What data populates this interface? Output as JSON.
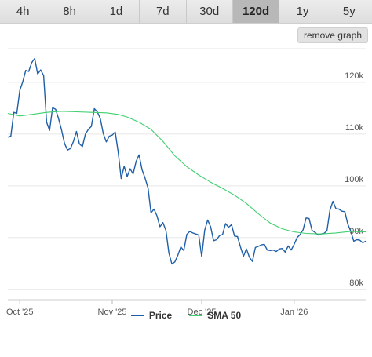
{
  "tabs": [
    {
      "label": "4h"
    },
    {
      "label": "8h"
    },
    {
      "label": "1d"
    },
    {
      "label": "7d"
    },
    {
      "label": "30d"
    },
    {
      "label": "120d"
    },
    {
      "label": "1y"
    },
    {
      "label": "5y"
    }
  ],
  "active_tab": "120d",
  "remove_button_label": "remove graph",
  "colors": {
    "price": "#1f5fa8",
    "sma": "#3fcf70",
    "grid": "#e6e6e6",
    "active_tab": "#b8b8b8"
  },
  "chart_data": {
    "type": "line",
    "title": "",
    "xlabel": "",
    "ylabel": "",
    "ylim": [
      78000,
      126500
    ],
    "y_ticks": [
      {
        "value": 80000,
        "label": "80k"
      },
      {
        "value": 90000,
        "label": "90k"
      },
      {
        "value": 100000,
        "label": "100k"
      },
      {
        "value": 110000,
        "label": "110k"
      },
      {
        "value": 120000,
        "label": "120k"
      }
    ],
    "x_range": [
      "2025-09-27",
      "2026-01-25"
    ],
    "x_ticks": [
      {
        "date": "2025-10-01",
        "label": "Oct '25"
      },
      {
        "date": "2025-11-01",
        "label": "Nov '25"
      },
      {
        "date": "2025-12-01",
        "label": "Dec '25"
      },
      {
        "date": "2026-01-01",
        "label": "Jan '26"
      }
    ],
    "grid": true,
    "legend_position": "bottom",
    "series": [
      {
        "name": "Price",
        "color": "#1f5fa8",
        "points": [
          [
            "2025-09-27",
            109400
          ],
          [
            "2025-09-28",
            109600
          ],
          [
            "2025-09-29",
            114200
          ],
          [
            "2025-09-30",
            114000
          ],
          [
            "2025-10-01",
            118400
          ],
          [
            "2025-10-02",
            120100
          ],
          [
            "2025-10-03",
            122300
          ],
          [
            "2025-10-04",
            122100
          ],
          [
            "2025-10-05",
            123800
          ],
          [
            "2025-10-06",
            124600
          ],
          [
            "2025-10-07",
            121600
          ],
          [
            "2025-10-08",
            122400
          ],
          [
            "2025-10-09",
            121300
          ],
          [
            "2025-10-10",
            112300
          ],
          [
            "2025-10-11",
            110700
          ],
          [
            "2025-10-12",
            115100
          ],
          [
            "2025-10-13",
            114800
          ],
          [
            "2025-10-14",
            113000
          ],
          [
            "2025-10-15",
            110800
          ],
          [
            "2025-10-16",
            108200
          ],
          [
            "2025-10-17",
            106900
          ],
          [
            "2025-10-18",
            107200
          ],
          [
            "2025-10-19",
            108600
          ],
          [
            "2025-10-20",
            110500
          ],
          [
            "2025-10-21",
            108100
          ],
          [
            "2025-10-22",
            107600
          ],
          [
            "2025-10-23",
            110000
          ],
          [
            "2025-10-24",
            110900
          ],
          [
            "2025-10-25",
            111500
          ],
          [
            "2025-10-26",
            114900
          ],
          [
            "2025-10-27",
            114300
          ],
          [
            "2025-10-28",
            113000
          ],
          [
            "2025-10-29",
            110100
          ],
          [
            "2025-10-30",
            108500
          ],
          [
            "2025-10-31",
            109600
          ],
          [
            "2025-11-01",
            109800
          ],
          [
            "2025-11-02",
            110400
          ],
          [
            "2025-11-03",
            106500
          ],
          [
            "2025-11-04",
            101400
          ],
          [
            "2025-11-05",
            103800
          ],
          [
            "2025-11-06",
            101800
          ],
          [
            "2025-11-07",
            103300
          ],
          [
            "2025-11-08",
            102300
          ],
          [
            "2025-11-09",
            104700
          ],
          [
            "2025-11-10",
            106000
          ],
          [
            "2025-11-11",
            103100
          ],
          [
            "2025-11-12",
            101500
          ],
          [
            "2025-11-13",
            99600
          ],
          [
            "2025-11-14",
            94800
          ],
          [
            "2025-11-15",
            95500
          ],
          [
            "2025-11-16",
            94200
          ],
          [
            "2025-11-17",
            92100
          ],
          [
            "2025-11-18",
            92900
          ],
          [
            "2025-11-19",
            91400
          ],
          [
            "2025-11-20",
            87000
          ],
          [
            "2025-11-21",
            84900
          ],
          [
            "2025-11-22",
            85300
          ],
          [
            "2025-11-23",
            86600
          ],
          [
            "2025-11-24",
            88200
          ],
          [
            "2025-11-25",
            87500
          ],
          [
            "2025-11-26",
            90600
          ],
          [
            "2025-11-27",
            91200
          ],
          [
            "2025-11-28",
            90900
          ],
          [
            "2025-11-29",
            90700
          ],
          [
            "2025-11-30",
            90500
          ],
          [
            "2025-12-01",
            86300
          ],
          [
            "2025-12-02",
            91400
          ],
          [
            "2025-12-03",
            93400
          ],
          [
            "2025-12-04",
            92100
          ],
          [
            "2025-12-05",
            89400
          ],
          [
            "2025-12-06",
            89600
          ],
          [
            "2025-12-07",
            90400
          ],
          [
            "2025-12-08",
            90600
          ],
          [
            "2025-12-09",
            92700
          ],
          [
            "2025-12-10",
            92000
          ],
          [
            "2025-12-11",
            92500
          ],
          [
            "2025-12-12",
            90300
          ],
          [
            "2025-12-13",
            90200
          ],
          [
            "2025-12-14",
            88200
          ],
          [
            "2025-12-15",
            86400
          ],
          [
            "2025-12-16",
            87800
          ],
          [
            "2025-12-17",
            86200
          ],
          [
            "2025-12-18",
            85400
          ],
          [
            "2025-12-19",
            88100
          ],
          [
            "2025-12-20",
            88300
          ],
          [
            "2025-12-21",
            88600
          ],
          [
            "2025-12-22",
            88700
          ],
          [
            "2025-12-23",
            87600
          ],
          [
            "2025-12-24",
            87500
          ],
          [
            "2025-12-25",
            87600
          ],
          [
            "2025-12-26",
            87300
          ],
          [
            "2025-12-27",
            87800
          ],
          [
            "2025-12-28",
            87900
          ],
          [
            "2025-12-29",
            87200
          ],
          [
            "2025-12-30",
            88400
          ],
          [
            "2025-12-31",
            87600
          ],
          [
            "2026-01-01",
            88700
          ],
          [
            "2026-01-02",
            90000
          ],
          [
            "2026-01-03",
            90600
          ],
          [
            "2026-01-04",
            91500
          ],
          [
            "2026-01-05",
            93800
          ],
          [
            "2026-01-06",
            93700
          ],
          [
            "2026-01-07",
            91400
          ],
          [
            "2026-01-08",
            91000
          ],
          [
            "2026-01-09",
            90500
          ],
          [
            "2026-01-10",
            90700
          ],
          [
            "2026-01-11",
            90800
          ],
          [
            "2026-01-12",
            91300
          ],
          [
            "2026-01-13",
            95300
          ],
          [
            "2026-01-14",
            97000
          ],
          [
            "2026-01-15",
            95600
          ],
          [
            "2026-01-16",
            95500
          ],
          [
            "2026-01-17",
            95100
          ],
          [
            "2026-01-18",
            95000
          ],
          [
            "2026-01-19",
            92600
          ],
          [
            "2026-01-20",
            91200
          ],
          [
            "2026-01-21",
            89300
          ],
          [
            "2026-01-22",
            89600
          ],
          [
            "2026-01-23",
            89500
          ],
          [
            "2026-01-24",
            89000
          ],
          [
            "2026-01-25",
            89300
          ]
        ]
      },
      {
        "name": "SMA 50",
        "color": "#3fcf70",
        "points": [
          [
            "2025-09-27",
            114000
          ],
          [
            "2025-10-01",
            113500
          ],
          [
            "2025-10-05",
            113800
          ],
          [
            "2025-10-10",
            114200
          ],
          [
            "2025-10-15",
            114400
          ],
          [
            "2025-10-20",
            114300
          ],
          [
            "2025-10-25",
            114200
          ],
          [
            "2025-10-30",
            114100
          ],
          [
            "2025-11-03",
            113800
          ],
          [
            "2025-11-06",
            113300
          ],
          [
            "2025-11-10",
            112300
          ],
          [
            "2025-11-14",
            110900
          ],
          [
            "2025-11-18",
            108600
          ],
          [
            "2025-11-22",
            105800
          ],
          [
            "2025-11-26",
            103700
          ],
          [
            "2025-11-30",
            102100
          ],
          [
            "2025-12-04",
            100700
          ],
          [
            "2025-12-08",
            99500
          ],
          [
            "2025-12-12",
            98200
          ],
          [
            "2025-12-16",
            96600
          ],
          [
            "2025-12-20",
            94600
          ],
          [
            "2025-12-24",
            92800
          ],
          [
            "2025-12-28",
            91700
          ],
          [
            "2026-01-01",
            91100
          ],
          [
            "2026-01-05",
            90800
          ],
          [
            "2026-01-10",
            90700
          ],
          [
            "2026-01-15",
            90900
          ],
          [
            "2026-01-20",
            91200
          ],
          [
            "2026-01-25",
            91100
          ]
        ]
      }
    ]
  }
}
